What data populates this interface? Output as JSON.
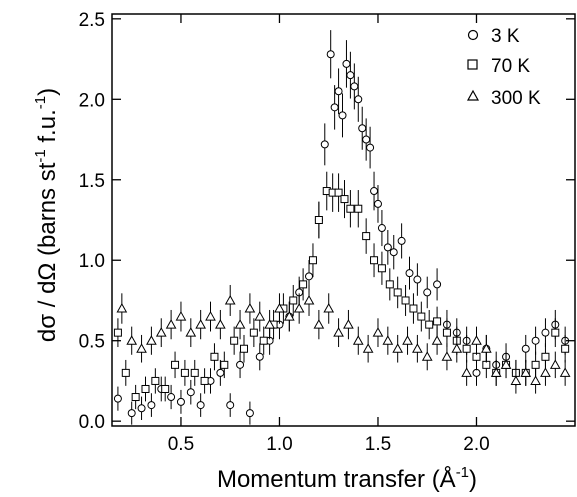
{
  "chart_data": {
    "type": "scatter",
    "xlabel_main": "Momentum transfer (Å",
    "xlabel_sup": "-1",
    "xlabel_end": ")",
    "ylabel_main": "dσ / dΩ  (barns st",
    "ylabel_sup": "-1",
    "ylabel_mid": " f.u.",
    "ylabel_sup2": "-1",
    "ylabel_end": ")",
    "xlim": [
      0.15,
      2.5
    ],
    "ylim": [
      -0.03,
      2.53
    ],
    "x_ticks": [
      0.5,
      1.0,
      1.5,
      2.0
    ],
    "x_tick_labels": [
      "0.5",
      "1.0",
      "1.5",
      "2.0"
    ],
    "y_ticks": [
      0.0,
      0.5,
      1.0,
      1.5,
      2.0,
      2.5
    ],
    "y_tick_labels": [
      "0.0",
      "0.5",
      "1.0",
      "1.5",
      "2.0",
      "2.5"
    ],
    "grid": false,
    "legend_position": "top-right",
    "series": [
      {
        "name": "3 K",
        "marker": "circle",
        "x": [
          0.18,
          0.25,
          0.3,
          0.35,
          0.4,
          0.45,
          0.5,
          0.55,
          0.6,
          0.65,
          0.7,
          0.75,
          0.8,
          0.85,
          0.9,
          0.95,
          1.0,
          1.05,
          1.1,
          1.15,
          1.2,
          1.23,
          1.26,
          1.28,
          1.3,
          1.32,
          1.34,
          1.36,
          1.38,
          1.4,
          1.42,
          1.44,
          1.46,
          1.48,
          1.5,
          1.52,
          1.55,
          1.58,
          1.62,
          1.66,
          1.7,
          1.75,
          1.8,
          1.85,
          1.9,
          1.95,
          2.0,
          2.05,
          2.1,
          2.15,
          2.2,
          2.25,
          2.3,
          2.35,
          2.4,
          2.45
        ],
        "y": [
          0.14,
          0.05,
          0.08,
          0.1,
          0.2,
          0.15,
          0.12,
          0.18,
          0.1,
          0.25,
          0.3,
          0.1,
          0.35,
          0.05,
          0.4,
          0.5,
          0.6,
          0.65,
          0.8,
          0.9,
          1.25,
          1.72,
          2.28,
          1.95,
          2.05,
          1.9,
          2.22,
          2.15,
          2.08,
          2.0,
          1.82,
          1.75,
          1.7,
          1.43,
          1.35,
          1.2,
          1.08,
          1.05,
          1.12,
          0.92,
          0.88,
          0.8,
          0.85,
          0.6,
          0.55,
          0.5,
          0.3,
          0.45,
          0.35,
          0.4,
          0.3,
          0.45,
          0.5,
          0.55,
          0.6,
          0.5
        ]
      },
      {
        "name": "70 K",
        "marker": "square",
        "x": [
          0.18,
          0.22,
          0.27,
          0.32,
          0.37,
          0.42,
          0.47,
          0.52,
          0.57,
          0.62,
          0.67,
          0.72,
          0.77,
          0.82,
          0.87,
          0.92,
          0.97,
          1.02,
          1.07,
          1.12,
          1.17,
          1.2,
          1.24,
          1.27,
          1.3,
          1.33,
          1.36,
          1.4,
          1.44,
          1.48,
          1.52,
          1.56,
          1.6,
          1.64,
          1.68,
          1.72,
          1.76,
          1.8,
          1.85,
          1.9,
          1.95,
          2.0,
          2.05,
          2.1,
          2.15,
          2.2,
          2.25,
          2.3,
          2.35,
          2.4,
          2.45
        ],
        "y": [
          0.55,
          0.3,
          0.15,
          0.2,
          0.25,
          0.2,
          0.35,
          0.3,
          0.3,
          0.25,
          0.4,
          0.35,
          0.5,
          0.45,
          0.55,
          0.5,
          0.6,
          0.7,
          0.75,
          0.85,
          1.0,
          1.25,
          1.43,
          1.42,
          1.42,
          1.38,
          1.32,
          1.32,
          1.15,
          1.0,
          0.95,
          0.85,
          0.8,
          0.75,
          0.7,
          0.65,
          0.6,
          0.62,
          0.55,
          0.5,
          0.45,
          0.4,
          0.35,
          0.3,
          0.35,
          0.3,
          0.3,
          0.35,
          0.4,
          0.55,
          0.45
        ]
      },
      {
        "name": "300 K",
        "marker": "triangle",
        "x": [
          0.2,
          0.25,
          0.3,
          0.35,
          0.4,
          0.45,
          0.5,
          0.55,
          0.6,
          0.65,
          0.7,
          0.75,
          0.8,
          0.85,
          0.9,
          0.95,
          1.0,
          1.05,
          1.1,
          1.15,
          1.2,
          1.25,
          1.3,
          1.35,
          1.4,
          1.45,
          1.5,
          1.55,
          1.6,
          1.65,
          1.7,
          1.75,
          1.8,
          1.85,
          1.9,
          1.95,
          2.0,
          2.05,
          2.1,
          2.15,
          2.2,
          2.25,
          2.3,
          2.35,
          2.4,
          2.45
        ],
        "y": [
          0.7,
          0.5,
          0.45,
          0.5,
          0.55,
          0.6,
          0.65,
          0.55,
          0.6,
          0.65,
          0.6,
          0.75,
          0.6,
          0.7,
          0.65,
          0.6,
          0.7,
          0.65,
          0.7,
          0.75,
          0.6,
          0.7,
          0.55,
          0.6,
          0.5,
          0.45,
          0.55,
          0.5,
          0.45,
          0.5,
          0.45,
          0.4,
          0.5,
          0.4,
          0.45,
          0.3,
          0.5,
          0.45,
          0.3,
          0.35,
          0.25,
          0.3,
          0.25,
          0.3,
          0.35,
          0.3
        ]
      }
    ]
  }
}
